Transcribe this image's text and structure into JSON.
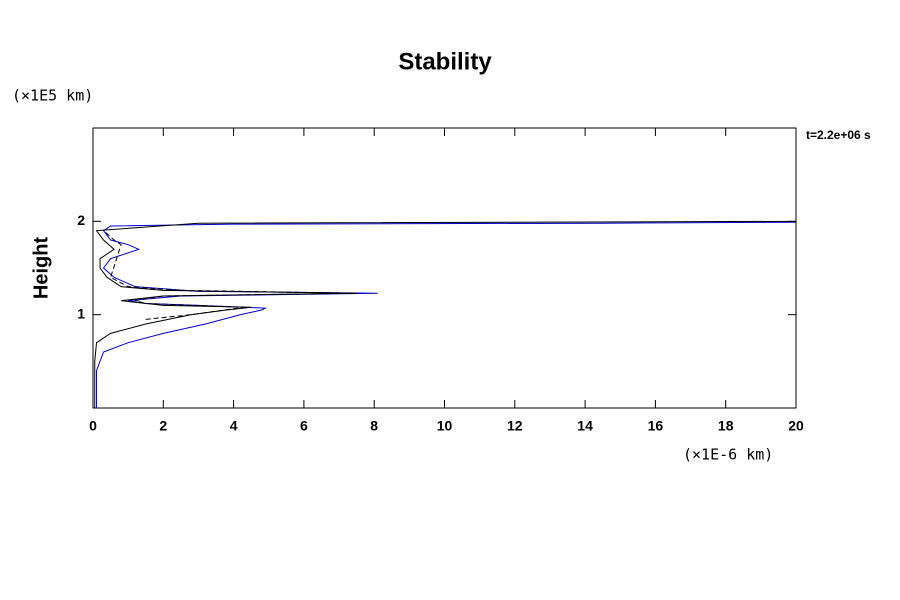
{
  "chart_data": {
    "type": "line",
    "title": "Stability",
    "y_unit": "(×1E5 km)",
    "y_label": "Height",
    "x_unit": "(×1E-6 km)",
    "annotation": "t=2.2e+06 s",
    "xlim": [
      0,
      20
    ],
    "ylim": [
      0,
      3
    ],
    "xticks": [
      0,
      2,
      4,
      6,
      8,
      10,
      12,
      14,
      16,
      18,
      20
    ],
    "yticks": [
      1,
      2
    ],
    "grid": false,
    "series": [
      {
        "color": "#0000cc",
        "dash": false,
        "x": [
          0.1,
          0.1,
          0.1,
          0.3,
          1.0,
          2.0,
          3.2,
          4.2,
          4.8,
          4.9,
          3.0,
          1.5,
          1.0,
          2.5,
          8.1,
          3.0,
          1.2,
          0.6,
          0.3,
          0.5,
          1.3,
          1.0,
          0.5,
          0.3,
          0.5,
          4.0,
          14.5,
          20
        ],
        "y": [
          0,
          0.2,
          0.4,
          0.6,
          0.7,
          0.8,
          0.9,
          1.0,
          1.05,
          1.07,
          1.1,
          1.12,
          1.15,
          1.2,
          1.23,
          1.25,
          1.3,
          1.4,
          1.5,
          1.6,
          1.7,
          1.75,
          1.8,
          1.9,
          1.95,
          1.97,
          1.98,
          1.99
        ]
      },
      {
        "color": "#000000",
        "dash": false,
        "x": [
          0.05,
          0.05,
          0.1,
          0.5,
          1.5,
          2.8,
          3.8,
          4.5,
          2.0,
          0.8,
          2.0,
          7.5,
          2.0,
          0.8,
          0.4,
          0.2,
          0.2,
          0.6,
          0.3,
          0.1,
          3.0,
          20
        ],
        "y": [
          0,
          0.5,
          0.7,
          0.8,
          0.9,
          1.0,
          1.05,
          1.08,
          1.1,
          1.15,
          1.2,
          1.23,
          1.26,
          1.3,
          1.4,
          1.5,
          1.6,
          1.7,
          1.8,
          1.9,
          1.98,
          2.0
        ]
      },
      {
        "color": "#000000",
        "dash": true,
        "x": [
          1.5,
          2.8,
          4.3,
          1.5,
          1.2,
          2.0,
          7.5,
          2.5,
          1.0,
          0.5,
          0.8,
          0.6,
          0.3
        ],
        "y": [
          0.95,
          1.0,
          1.08,
          1.12,
          1.15,
          1.2,
          1.23,
          1.26,
          1.3,
          1.4,
          1.75,
          1.8,
          1.9
        ]
      }
    ]
  }
}
